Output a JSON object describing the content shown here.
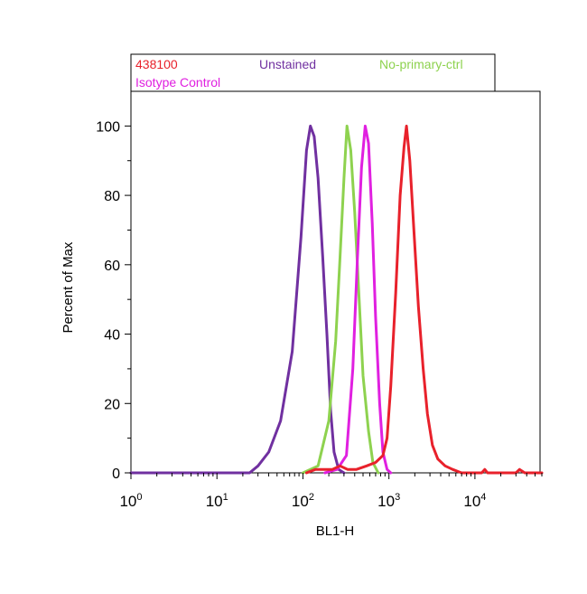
{
  "chart_data": {
    "type": "line",
    "xlabel": "BL1-H",
    "ylabel": "Percent of Max",
    "x_scale": "log",
    "xlim": [
      1,
      60000
    ],
    "ylim": [
      0,
      110
    ],
    "x_ticks": [
      {
        "value": 1,
        "base": "10",
        "exp": "0"
      },
      {
        "value": 10,
        "base": "10",
        "exp": "1"
      },
      {
        "value": 100,
        "base": "10",
        "exp": "2"
      },
      {
        "value": 1000,
        "base": "10",
        "exp": "3"
      },
      {
        "value": 10000,
        "base": "10",
        "exp": "4"
      }
    ],
    "y_ticks": [
      "0",
      "20",
      "40",
      "60",
      "80",
      "100"
    ],
    "grid": false,
    "legend_position": "top",
    "legend": [
      {
        "label": "438100",
        "color": "#e8212b"
      },
      {
        "label": "Unstained",
        "color": "#7030a0"
      },
      {
        "label": "No-primary-ctrl",
        "color": "#8ed24f"
      },
      {
        "label": "Isotype Control",
        "color": "#e020e0"
      }
    ],
    "series": [
      {
        "name": "Unstained",
        "color": "#7030a0",
        "points": [
          [
            1,
            0
          ],
          [
            15,
            0
          ],
          [
            24,
            0
          ],
          [
            30,
            2
          ],
          [
            40,
            6
          ],
          [
            55,
            15
          ],
          [
            75,
            35
          ],
          [
            95,
            68
          ],
          [
            110,
            93
          ],
          [
            122,
            100
          ],
          [
            135,
            97
          ],
          [
            150,
            85
          ],
          [
            170,
            62
          ],
          [
            190,
            40
          ],
          [
            210,
            18
          ],
          [
            230,
            6
          ],
          [
            260,
            1
          ],
          [
            300,
            0
          ]
        ]
      },
      {
        "name": "No-primary-ctrl",
        "color": "#8ed24f",
        "points": [
          [
            100,
            0
          ],
          [
            150,
            2
          ],
          [
            200,
            15
          ],
          [
            240,
            38
          ],
          [
            270,
            62
          ],
          [
            300,
            85
          ],
          [
            325,
            100
          ],
          [
            360,
            93
          ],
          [
            400,
            75
          ],
          [
            450,
            50
          ],
          [
            500,
            28
          ],
          [
            580,
            12
          ],
          [
            650,
            3
          ],
          [
            750,
            0
          ]
        ]
      },
      {
        "name": "Isotype Control",
        "color": "#e020e0",
        "points": [
          [
            180,
            0
          ],
          [
            250,
            1
          ],
          [
            320,
            5
          ],
          [
            380,
            30
          ],
          [
            430,
            62
          ],
          [
            480,
            88
          ],
          [
            530,
            100
          ],
          [
            580,
            95
          ],
          [
            640,
            72
          ],
          [
            700,
            45
          ],
          [
            780,
            20
          ],
          [
            850,
            6
          ],
          [
            950,
            1
          ],
          [
            1050,
            0
          ]
        ]
      },
      {
        "name": "438100",
        "color": "#e8212b",
        "points": [
          [
            110,
            0
          ],
          [
            140,
            1
          ],
          [
            170,
            1
          ],
          [
            220,
            1
          ],
          [
            270,
            2
          ],
          [
            330,
            1
          ],
          [
            420,
            1
          ],
          [
            550,
            2
          ],
          [
            700,
            3
          ],
          [
            850,
            5
          ],
          [
            950,
            10
          ],
          [
            1050,
            25
          ],
          [
            1200,
            52
          ],
          [
            1350,
            80
          ],
          [
            1500,
            94
          ],
          [
            1600,
            100
          ],
          [
            1750,
            90
          ],
          [
            1950,
            70
          ],
          [
            2200,
            48
          ],
          [
            2500,
            30
          ],
          [
            2800,
            17
          ],
          [
            3200,
            8
          ],
          [
            3700,
            4
          ],
          [
            4500,
            2
          ],
          [
            5500,
            1
          ],
          [
            7000,
            0
          ],
          [
            9000,
            0
          ],
          [
            12000,
            0
          ],
          [
            13000,
            1
          ],
          [
            14000,
            0
          ],
          [
            20000,
            0
          ],
          [
            30000,
            0
          ],
          [
            33000,
            1
          ],
          [
            38000,
            0
          ],
          [
            50000,
            0
          ],
          [
            60000,
            0
          ]
        ]
      }
    ]
  }
}
